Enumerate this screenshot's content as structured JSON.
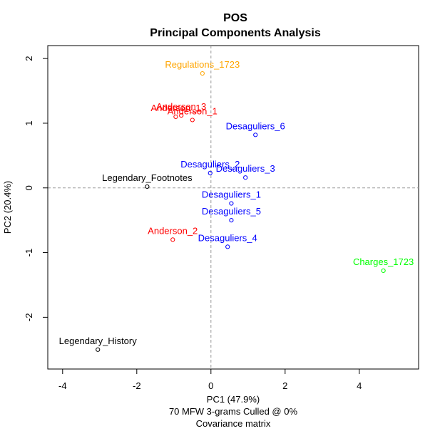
{
  "chart_data": {
    "type": "scatter",
    "title": "POS",
    "subtitle": "Principal Components Analysis",
    "xlabel": "PC1 (47.9%)",
    "xlabel_sub1": "70 MFW 3-grams Culled @ 0%",
    "xlabel_sub2": "Covariance matrix",
    "ylabel": "PC2 (20.4%)",
    "xlim": [
      -4.4,
      5.6
    ],
    "ylim": [
      -2.8,
      2.2
    ],
    "xticks": [
      -4,
      -2,
      0,
      2,
      4
    ],
    "yticks": [
      -2,
      -1,
      0,
      1,
      2
    ],
    "grid": false,
    "reference_lines": {
      "x": 0,
      "y": 0,
      "style": "dashed"
    },
    "colors": {
      "Regulations": "#FFA500",
      "Anderson": "#FF0000",
      "Desaguliers": "#0000FF",
      "Legendary": "#000000",
      "Charges": "#00FF00"
    },
    "points": [
      {
        "label": "Regulations_1723",
        "x": -0.23,
        "y": 1.77,
        "group": "Regulations"
      },
      {
        "label": "Anderson_3",
        "x": -0.8,
        "y": 1.12,
        "group": "Anderson"
      },
      {
        "label": "Anderson_1",
        "x": -0.5,
        "y": 1.05,
        "group": "Anderson"
      },
      {
        "label": "Anderson_1",
        "x": -0.95,
        "y": 1.1,
        "group": "Anderson"
      },
      {
        "label": "Desaguliers_6",
        "x": 1.2,
        "y": 0.82,
        "group": "Desaguliers"
      },
      {
        "label": "Desaguliers_2",
        "x": -0.02,
        "y": 0.23,
        "group": "Desaguliers"
      },
      {
        "label": "Desaguliers_3",
        "x": 0.93,
        "y": 0.16,
        "group": "Desaguliers"
      },
      {
        "label": "Legendary_Footnotes",
        "x": -1.72,
        "y": 0.02,
        "group": "Legendary"
      },
      {
        "label": "Desaguliers_1",
        "x": 0.55,
        "y": -0.24,
        "group": "Desaguliers"
      },
      {
        "label": "Desaguliers_5",
        "x": 0.55,
        "y": -0.5,
        "group": "Desaguliers"
      },
      {
        "label": "Anderson_2",
        "x": -1.03,
        "y": -0.8,
        "group": "Anderson"
      },
      {
        "label": "Desaguliers_4",
        "x": 0.45,
        "y": -0.91,
        "group": "Desaguliers"
      },
      {
        "label": "Charges_1723",
        "x": 4.65,
        "y": -1.28,
        "group": "Charges"
      },
      {
        "label": "Legendary_History",
        "x": -3.05,
        "y": -2.5,
        "group": "Legendary"
      }
    ]
  }
}
